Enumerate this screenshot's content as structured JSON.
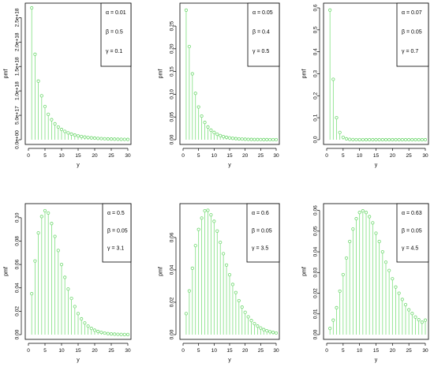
{
  "colors": {
    "series": "#6fd86f",
    "stem": "#7ee07e",
    "axis": "#000000"
  },
  "chart_data": [
    {
      "type": "stem",
      "xlabel": "y",
      "ylabel": "pmf",
      "xlim": [
        0,
        30
      ],
      "ylim": [
        0,
        2.7e+18
      ],
      "xticks": [
        0,
        5,
        10,
        15,
        20,
        25,
        30
      ],
      "yticks": [
        0,
        5e+17,
        1e+18,
        1.5e+18,
        2e+18,
        2.5e+18
      ],
      "yticklabels": [
        "0.0e+00",
        "5.0e+17",
        "1.0e+18",
        "1.5e+18",
        "2.0e+18",
        "2.5e+18"
      ],
      "legend": [
        "α = 0.01",
        "β = 0.5",
        "γ = 0.1"
      ],
      "x": [
        1,
        2,
        3,
        4,
        5,
        6,
        7,
        8,
        9,
        10,
        11,
        12,
        13,
        14,
        15,
        16,
        17,
        18,
        19,
        20,
        21,
        22,
        23,
        24,
        25,
        26,
        27,
        28,
        29,
        30
      ],
      "y": [
        2.7e+18,
        1.75e+18,
        1.2e+18,
        9e+17,
        6.8e+17,
        5.2e+17,
        4.1e+17,
        3.25e+17,
        2.6e+17,
        2.1e+17,
        1.7e+17,
        1.4e+17,
        1.15e+17,
        9.5e+16,
        7.8e+16,
        6.5e+16,
        5.4e+16,
        4.5e+16,
        3.8e+16,
        3.2e+16,
        2.7e+16,
        2.3e+16,
        1.9e+16,
        1.6e+16,
        1.4e+16,
        1.2e+16,
        1e+16,
        8500000000000000.0,
        7200000000000000.0,
        6000000000000000.0
      ]
    },
    {
      "type": "stem",
      "xlabel": "y",
      "ylabel": "pmf",
      "xlim": [
        0,
        30
      ],
      "ylim": [
        0,
        0.29
      ],
      "xticks": [
        0,
        5,
        10,
        15,
        20,
        25,
        30
      ],
      "yticks": [
        0,
        0.05,
        0.1,
        0.15,
        0.2,
        0.25
      ],
      "yticklabels": [
        "0.00",
        "0.05",
        "0.10",
        "0.15",
        "0.20",
        "0.25"
      ],
      "legend": [
        "α = 0.05",
        "β = 0.4",
        "γ = 0.5"
      ],
      "x": [
        1,
        2,
        3,
        4,
        5,
        6,
        7,
        8,
        9,
        10,
        11,
        12,
        13,
        14,
        15,
        16,
        17,
        18,
        19,
        20,
        21,
        22,
        23,
        24,
        25,
        26,
        27,
        28,
        29,
        30
      ],
      "y": [
        0.285,
        0.205,
        0.145,
        0.102,
        0.072,
        0.052,
        0.038,
        0.028,
        0.021,
        0.016,
        0.012,
        0.009,
        0.0068,
        0.0052,
        0.004,
        0.0031,
        0.0024,
        0.0018,
        0.0014,
        0.0011,
        0.0008,
        0.0006,
        0.0005,
        0.0004,
        0.0003,
        0.0002,
        0.0002,
        0.0001,
        0.0001,
        0.0001
      ]
    },
    {
      "type": "stem",
      "xlabel": "y",
      "ylabel": "pmf",
      "xlim": [
        0,
        30
      ],
      "ylim": [
        0,
        0.6
      ],
      "xticks": [
        0,
        5,
        10,
        15,
        20,
        25,
        30
      ],
      "yticks": [
        0,
        0.1,
        0.2,
        0.3,
        0.4,
        0.5,
        0.6
      ],
      "yticklabels": [
        "0.0",
        "0.1",
        "0.2",
        "0.3",
        "0.4",
        "0.5",
        "0.6"
      ],
      "legend": [
        "α = 0.07",
        "β = 0.05",
        "γ = 0.7"
      ],
      "x": [
        1,
        2,
        3,
        4,
        5,
        6,
        7,
        8,
        9,
        10,
        11,
        12,
        13,
        14,
        15,
        16,
        17,
        18,
        19,
        20,
        21,
        22,
        23,
        24,
        25,
        26,
        27,
        28,
        29,
        30
      ],
      "y": [
        0.59,
        0.275,
        0.1,
        0.033,
        0.011,
        0.004,
        0.0015,
        0.0005,
        0.0002,
        0.0001,
        0.0001,
        0,
        0,
        0,
        0,
        0,
        0,
        0,
        0,
        0,
        0,
        0,
        0,
        0,
        0,
        0,
        0,
        0,
        0,
        0
      ]
    },
    {
      "type": "stem",
      "xlabel": "y",
      "ylabel": "pmf",
      "xlim": [
        0,
        30
      ],
      "ylim": [
        0,
        0.108
      ],
      "xticks": [
        0,
        5,
        10,
        15,
        20,
        25,
        30
      ],
      "yticks": [
        0,
        0.02,
        0.04,
        0.06,
        0.08,
        0.1
      ],
      "yticklabels": [
        "0.00",
        "0.02",
        "0.04",
        "0.06",
        "0.08",
        "0.10"
      ],
      "legend": [
        "α = 0.5",
        "β = 0.05",
        "γ = 3.1"
      ],
      "x": [
        1,
        2,
        3,
        4,
        5,
        6,
        7,
        8,
        9,
        10,
        11,
        12,
        13,
        14,
        15,
        16,
        17,
        18,
        19,
        20,
        21,
        22,
        23,
        24,
        25,
        26,
        27,
        28,
        29,
        30
      ],
      "y": [
        0.035,
        0.063,
        0.087,
        0.101,
        0.106,
        0.104,
        0.095,
        0.084,
        0.072,
        0.06,
        0.049,
        0.039,
        0.031,
        0.024,
        0.018,
        0.0135,
        0.01,
        0.0073,
        0.0053,
        0.0038,
        0.0027,
        0.0019,
        0.0013,
        0.0009,
        0.0006,
        0.0004,
        0.0003,
        0.0002,
        0.0001,
        0.0001
      ]
    },
    {
      "type": "stem",
      "xlabel": "y",
      "ylabel": "pmf",
      "xlim": [
        0,
        30
      ],
      "ylim": [
        0,
        0.078
      ],
      "xticks": [
        0,
        5,
        10,
        15,
        20,
        25,
        30
      ],
      "yticks": [
        0,
        0.02,
        0.04,
        0.06
      ],
      "yticklabels": [
        "0.00",
        "0.02",
        "0.04",
        "0.06"
      ],
      "legend": [
        "α = 0.6",
        "β = 0.05",
        "γ = 3.5"
      ],
      "x": [
        1,
        2,
        3,
        4,
        5,
        6,
        7,
        8,
        9,
        10,
        11,
        12,
        13,
        14,
        15,
        16,
        17,
        18,
        19,
        20,
        21,
        22,
        23,
        24,
        25,
        26,
        27,
        28,
        29,
        30
      ],
      "y": [
        0.013,
        0.027,
        0.041,
        0.055,
        0.065,
        0.072,
        0.0765,
        0.0768,
        0.074,
        0.07,
        0.064,
        0.057,
        0.05,
        0.043,
        0.037,
        0.031,
        0.026,
        0.021,
        0.017,
        0.0138,
        0.011,
        0.0087,
        0.0068,
        0.0053,
        0.0041,
        0.0031,
        0.0024,
        0.0018,
        0.0014,
        0.001
      ]
    },
    {
      "type": "stem",
      "xlabel": "y",
      "ylabel": "pmf",
      "xlim": [
        0,
        30
      ],
      "ylim": [
        0,
        0.061
      ],
      "xticks": [
        0,
        5,
        10,
        15,
        20,
        25,
        30
      ],
      "yticks": [
        0,
        0.01,
        0.02,
        0.03,
        0.04,
        0.05,
        0.06
      ],
      "yticklabels": [
        "0.00",
        "0.01",
        "0.02",
        "0.03",
        "0.04",
        "0.05",
        "0.06"
      ],
      "legend": [
        "α = 0.63",
        "β = 0.05",
        "γ = 4.5"
      ],
      "x": [
        1,
        2,
        3,
        4,
        5,
        6,
        7,
        8,
        9,
        10,
        11,
        12,
        13,
        14,
        15,
        16,
        17,
        18,
        19,
        20,
        21,
        22,
        23,
        24,
        25,
        26,
        27,
        28,
        29,
        30
      ],
      "y": [
        0.003,
        0.007,
        0.013,
        0.021,
        0.029,
        0.037,
        0.045,
        0.051,
        0.056,
        0.059,
        0.0598,
        0.059,
        0.057,
        0.054,
        0.049,
        0.045,
        0.04,
        0.035,
        0.031,
        0.027,
        0.023,
        0.02,
        0.017,
        0.0145,
        0.012,
        0.0102,
        0.0085,
        0.0072,
        0.006,
        0.007
      ]
    }
  ]
}
